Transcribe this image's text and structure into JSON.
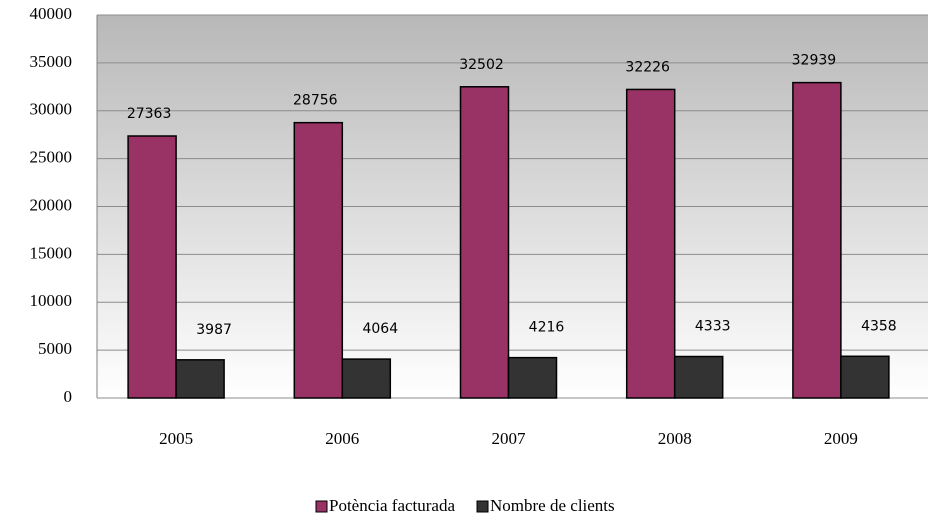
{
  "chart_data": {
    "type": "bar",
    "categories": [
      "2005",
      "2006",
      "2007",
      "2008",
      "2009"
    ],
    "series": [
      {
        "name": "Potència facturada",
        "color": "#993366",
        "values": [
          27363,
          28756,
          32502,
          32226,
          32939
        ]
      },
      {
        "name": "Nombre de clients",
        "color": "#333333",
        "values": [
          3987,
          4064,
          4216,
          4333,
          4358
        ]
      }
    ],
    "ylim": [
      0,
      40000
    ],
    "yticks": [
      0,
      5000,
      10000,
      15000,
      20000,
      25000,
      30000,
      35000,
      40000
    ],
    "grid": true,
    "legend": "bottom"
  }
}
